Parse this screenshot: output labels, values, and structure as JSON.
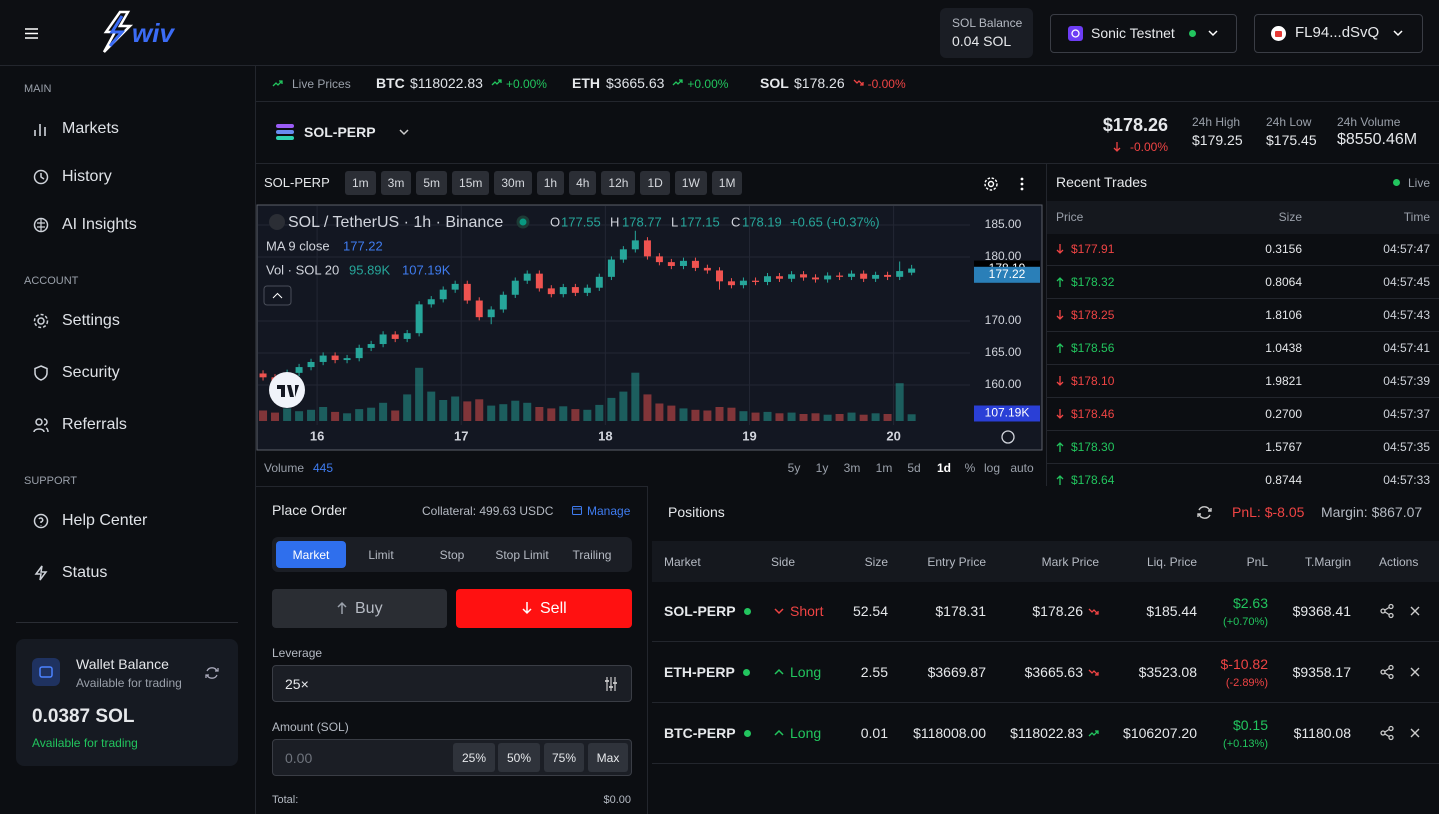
{
  "header": {
    "logo": "wiv",
    "balance_label": "SOL Balance",
    "balance": "0.04 SOL",
    "network": "Sonic Testnet",
    "wallet": "FL94...dSvQ"
  },
  "sidebar": {
    "sections": [
      {
        "title": "MAIN",
        "items": [
          "Markets",
          "History",
          "AI Insights"
        ]
      },
      {
        "title": "ACCOUNT",
        "items": [
          "Settings",
          "Security",
          "Referrals"
        ]
      },
      {
        "title": "SUPPORT",
        "items": [
          "Help Center",
          "Status"
        ]
      }
    ],
    "wallet": {
      "title": "Wallet Balance",
      "subtitle": "Available for trading",
      "amount": "0.0387 SOL",
      "note": "Available for trading"
    }
  },
  "ticker": {
    "label": "Live Prices",
    "items": [
      {
        "symbol": "BTC",
        "price": "$118022.83",
        "change": "+0.00%",
        "direction": "up"
      },
      {
        "symbol": "ETH",
        "price": "$3665.63",
        "change": "+0.00%",
        "direction": "up"
      },
      {
        "symbol": "SOL",
        "price": "$178.26",
        "change": "-0.00%",
        "direction": "down"
      }
    ]
  },
  "market": {
    "symbol": "SOL-PERP",
    "price": "$178.26",
    "change": "-0.00%",
    "stats": [
      {
        "label": "24h High",
        "value": "$179.25"
      },
      {
        "label": "24h Low",
        "value": "$175.45"
      },
      {
        "label": "24h Volume",
        "value": "$8550.46M"
      }
    ]
  },
  "chart_toolbar": {
    "symbol": "SOL-PERP",
    "intervals": [
      "1m",
      "3m",
      "5m",
      "15m",
      "30m",
      "1h",
      "4h",
      "12h",
      "1D",
      "1W",
      "1M"
    ],
    "ranges": [
      "5y",
      "1y",
      "3m",
      "1m",
      "5d",
      "1d",
      "%",
      "log",
      "auto"
    ],
    "active_range": 5,
    "volume_label": "Volume",
    "volume_value": "445"
  },
  "chart_data": {
    "type": "candlestick",
    "title": "SOL / TetherUS · 1h · Binance",
    "legend": {
      "o_label": "O",
      "open": 177.55,
      "h_label": "H",
      "high": 178.77,
      "l_label": "L",
      "low": 177.15,
      "c_label": "C",
      "close": 178.19,
      "change": "+0.65 (+0.37%)",
      "ma_label": "MA 9 close",
      "ma": 177.22,
      "vol_label": "Vol · SOL 20",
      "vol": {
        "value": 95.89,
        "label": "95.89K"
      },
      "vol_ma": {
        "value": 107.19,
        "label": "107.19K"
      }
    },
    "x": [
      15.625,
      15.708,
      15.792,
      15.875,
      15.958,
      16.042,
      16.125,
      16.208,
      16.292,
      16.375,
      16.458,
      16.542,
      16.625,
      16.708,
      16.792,
      16.875,
      16.958,
      17.042,
      17.125,
      17.208,
      17.292,
      17.375,
      17.458,
      17.542,
      17.625,
      17.708,
      17.792,
      17.875,
      17.958,
      18.042,
      18.125,
      18.208,
      18.292,
      18.375,
      18.458,
      18.542,
      18.625,
      18.708,
      18.792,
      18.875,
      18.958,
      19.042,
      19.125,
      19.208,
      19.292,
      19.375,
      19.458,
      19.542,
      19.625,
      19.708,
      19.792,
      19.875,
      19.958,
      20.042,
      20.125
    ],
    "open": [
      161.8,
      161.2,
      160.6,
      161.9,
      162.8,
      163.6,
      164.6,
      163.9,
      164.2,
      165.8,
      166.4,
      167.9,
      167.2,
      168.1,
      172.6,
      173.4,
      174.9,
      175.8,
      173.2,
      170.6,
      171.8,
      174.1,
      176.3,
      177.4,
      175.1,
      174.2,
      175.3,
      174.4,
      175.2,
      176.9,
      179.6,
      181.2,
      182.6,
      180.1,
      179.2,
      178.6,
      179.4,
      178.3,
      177.9,
      176.2,
      175.6,
      176.3,
      176.1,
      177.0,
      176.6,
      177.3,
      176.8,
      176.5,
      177.1,
      176.9,
      177.4,
      176.6,
      177.2,
      176.9,
      177.55
    ],
    "high": [
      162.3,
      161.7,
      162.4,
      163.3,
      164.1,
      165.1,
      165.1,
      164.7,
      166.3,
      166.9,
      168.4,
      168.4,
      168.6,
      173.1,
      173.9,
      175.4,
      176.3,
      176.3,
      173.7,
      172.3,
      174.6,
      176.8,
      177.9,
      177.9,
      175.6,
      175.8,
      175.8,
      175.7,
      177.4,
      180.1,
      181.7,
      184.1,
      183.1,
      180.6,
      179.7,
      179.9,
      179.9,
      178.8,
      178.4,
      176.7,
      176.8,
      176.8,
      177.5,
      177.5,
      177.8,
      177.8,
      177.3,
      177.6,
      177.6,
      177.9,
      177.9,
      177.7,
      177.7,
      179.3,
      178.77
    ],
    "low": [
      160.7,
      160.1,
      160.1,
      161.4,
      162.3,
      163.1,
      163.4,
      163.4,
      163.7,
      165.3,
      165.9,
      166.7,
      166.7,
      167.6,
      172.1,
      172.9,
      174.4,
      172.7,
      170.1,
      169.5,
      171.3,
      173.6,
      175.8,
      174.6,
      173.7,
      173.7,
      173.9,
      173.9,
      174.7,
      176.4,
      179.1,
      180.7,
      179.6,
      178.7,
      178.1,
      178.1,
      177.8,
      177.4,
      174.9,
      175.1,
      175.1,
      175.6,
      175.6,
      176.1,
      176.1,
      176.3,
      176.0,
      176.0,
      176.4,
      176.4,
      176.1,
      176.1,
      176.4,
      176.4,
      177.15
    ],
    "close": [
      161.2,
      160.6,
      161.9,
      162.8,
      163.6,
      164.6,
      163.9,
      164.2,
      165.8,
      166.4,
      167.9,
      167.2,
      168.1,
      172.6,
      173.4,
      174.9,
      175.8,
      173.2,
      170.6,
      171.8,
      174.1,
      176.3,
      177.4,
      175.1,
      174.2,
      175.3,
      174.4,
      175.2,
      176.9,
      179.6,
      181.2,
      182.6,
      180.1,
      179.2,
      178.6,
      179.4,
      178.3,
      177.9,
      176.2,
      175.6,
      176.3,
      176.1,
      177.0,
      176.6,
      177.3,
      176.8,
      176.5,
      177.1,
      176.9,
      177.4,
      176.6,
      177.2,
      176.9,
      177.8,
      178.19
    ],
    "volume": [
      150,
      120,
      180,
      140,
      160,
      200,
      130,
      110,
      170,
      190,
      260,
      150,
      380,
      760,
      420,
      300,
      350,
      280,
      310,
      220,
      240,
      290,
      260,
      200,
      180,
      210,
      170,
      160,
      230,
      330,
      420,
      690,
      380,
      250,
      220,
      180,
      160,
      150,
      200,
      190,
      140,
      120,
      130,
      110,
      120,
      100,
      110,
      90,
      100,
      120,
      90,
      110,
      100,
      540,
      95.89
    ],
    "up_color": "#26a69a",
    "down_color": "#ef5350",
    "xlim": [
      15.59,
      20.53
    ],
    "xticks": [
      16,
      17,
      18,
      19,
      20
    ],
    "ylim": [
      153.75,
      187.97
    ],
    "yticks": [
      {
        "value": 160,
        "label": "160.00"
      },
      {
        "value": 165,
        "label": "165.00"
      },
      {
        "value": 170,
        "label": "170.00"
      },
      {
        "value": 180,
        "label": "180.00"
      },
      {
        "value": 185,
        "label": "185.00"
      }
    ],
    "y2lim": [
      0,
      1000
    ],
    "grid": true
  },
  "trades": {
    "title": "Recent Trades",
    "status": "Live",
    "columns": [
      "Price",
      "Size",
      "Time"
    ],
    "rows": [
      {
        "price": "$177.91",
        "size": "0.3156",
        "time": "04:57:47",
        "side": "down"
      },
      {
        "price": "$178.32",
        "size": "0.8064",
        "time": "04:57:45",
        "side": "up"
      },
      {
        "price": "$178.25",
        "size": "1.8106",
        "time": "04:57:43",
        "side": "down"
      },
      {
        "price": "$178.56",
        "size": "1.0438",
        "time": "04:57:41",
        "side": "up"
      },
      {
        "price": "$178.10",
        "size": "1.9821",
        "time": "04:57:39",
        "side": "down"
      },
      {
        "price": "$178.46",
        "size": "0.2700",
        "time": "04:57:37",
        "side": "down"
      },
      {
        "price": "$178.30",
        "size": "1.5767",
        "time": "04:57:35",
        "side": "up"
      },
      {
        "price": "$178.64",
        "size": "0.8744",
        "time": "04:57:33",
        "side": "up"
      }
    ]
  },
  "order": {
    "title": "Place Order",
    "collateral": "Collateral: 499.63 USDC",
    "manage": "Manage",
    "tabs": [
      "Market",
      "Limit",
      "Stop",
      "Stop Limit",
      "Trailing"
    ],
    "active_tab": 0,
    "buy": "Buy",
    "sell": "Sell",
    "leverage_label": "Leverage",
    "leverage": "25×",
    "amount_label": "Amount (SOL)",
    "amount_placeholder": "0.00",
    "quick": [
      "25%",
      "50%",
      "75%",
      "Max"
    ],
    "total_label": "Total:",
    "total": "$0.00"
  },
  "positions": {
    "title": "Positions",
    "pnl": "PnL: $-8.05",
    "margin": "Margin: $867.07",
    "columns": [
      "Market",
      "Side",
      "Size",
      "Entry Price",
      "Mark Price",
      "Liq. Price",
      "PnL",
      "T.Margin",
      "Actions"
    ],
    "rows": [
      {
        "market": "SOL-PERP",
        "side": "Short",
        "size": "52.54",
        "entry": "$178.31",
        "mark": "$178.26",
        "mark_dir": "down",
        "liq": "$185.44",
        "pnl": "$2.63",
        "pnl_pct": "(+0.70%)",
        "pnl_dir": "up",
        "margin": "$9368.41"
      },
      {
        "market": "ETH-PERP",
        "side": "Long",
        "size": "2.55",
        "entry": "$3669.87",
        "mark": "$3665.63",
        "mark_dir": "down",
        "liq": "$3523.08",
        "pnl": "$-10.82",
        "pnl_pct": "(-2.89%)",
        "pnl_dir": "down",
        "margin": "$9358.17"
      },
      {
        "market": "BTC-PERP",
        "side": "Long",
        "size": "0.01",
        "entry": "$118008.00",
        "mark": "$118022.83",
        "mark_dir": "up",
        "liq": "$106207.20",
        "pnl": "$0.15",
        "pnl_pct": "(+0.13%)",
        "pnl_dir": "up",
        "margin": "$1180.08"
      }
    ]
  }
}
